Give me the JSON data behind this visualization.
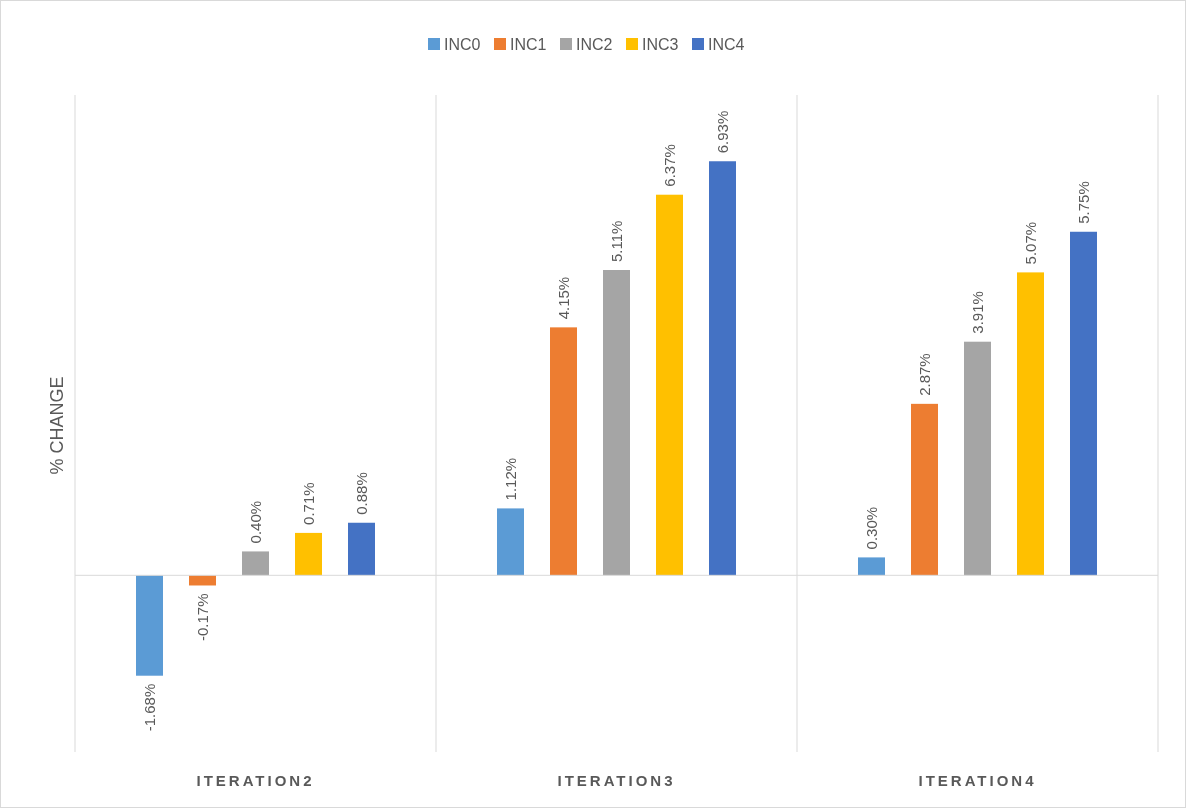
{
  "chart_data": {
    "type": "bar",
    "ylabel": "% CHANGE",
    "categories": [
      "ITERATION2",
      "ITERATION3",
      "ITERATION4"
    ],
    "series": [
      {
        "name": "INC0",
        "color": "#5b9bd5",
        "values": [
          -1.68,
          1.12,
          0.3
        ],
        "value_labels": [
          "-1.68%",
          "1.12%",
          "0.30%"
        ]
      },
      {
        "name": "INC1",
        "color": "#ed7d31",
        "values": [
          -0.17,
          4.15,
          2.87
        ],
        "value_labels": [
          "-0.17%",
          "4.15%",
          "2.87%"
        ]
      },
      {
        "name": "INC2",
        "color": "#a5a5a5",
        "values": [
          0.4,
          5.11,
          3.91
        ],
        "value_labels": [
          "0.40%",
          "5.11%",
          "3.91%"
        ]
      },
      {
        "name": "INC3",
        "color": "#ffc000",
        "values": [
          0.71,
          6.37,
          5.07
        ],
        "value_labels": [
          "0.71%",
          "6.37%",
          "5.07%"
        ]
      },
      {
        "name": "INC4",
        "color": "#4472c4",
        "values": [
          0.88,
          6.93,
          5.75
        ],
        "value_labels": [
          "0.88%",
          "6.93%",
          "5.75%"
        ]
      }
    ],
    "grid": "x",
    "legend": "top"
  }
}
